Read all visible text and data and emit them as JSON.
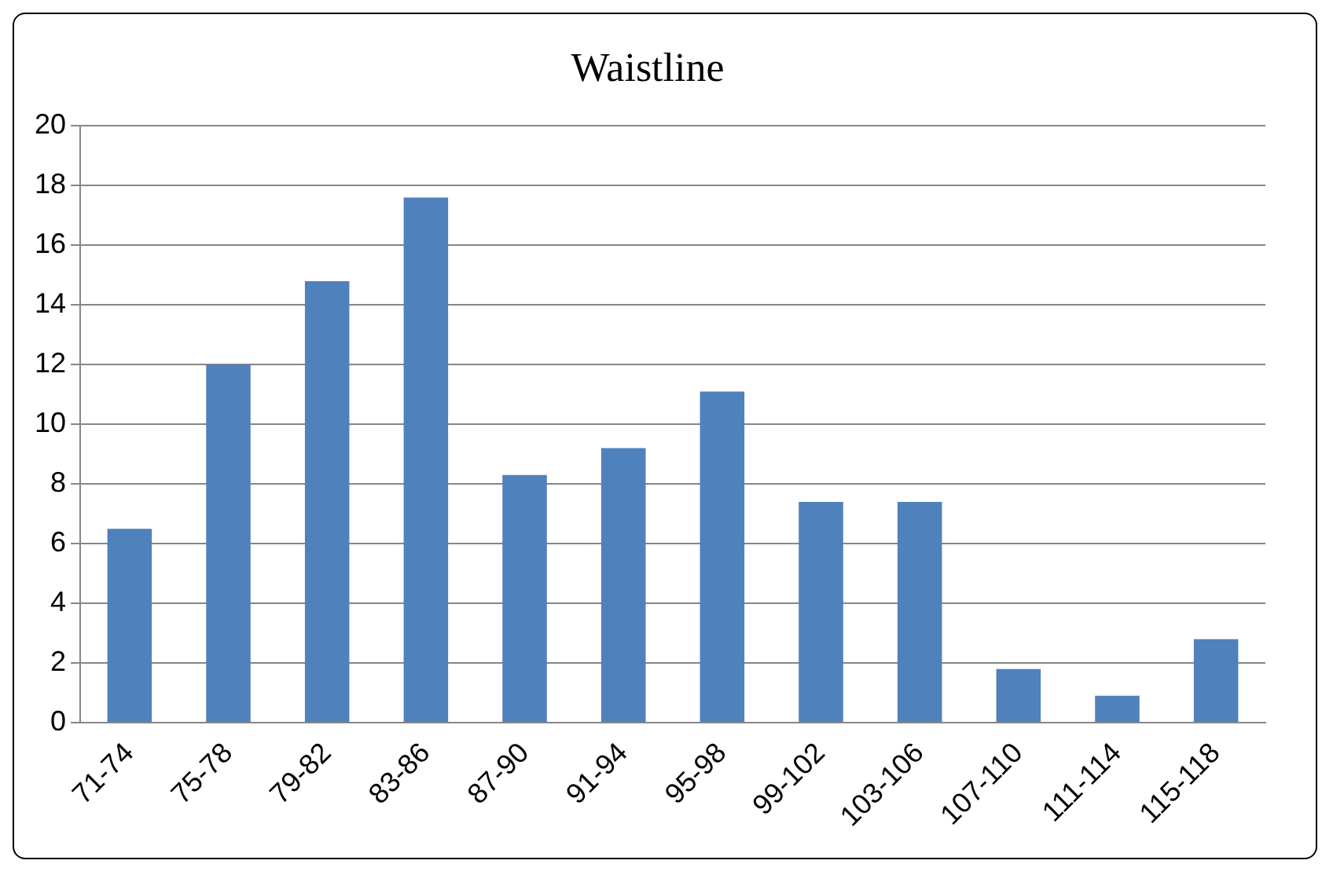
{
  "chart_data": {
    "type": "bar",
    "title": "Waistline",
    "categories": [
      "71-74",
      "75-78",
      "79-82",
      "83-86",
      "87-90",
      "91-94",
      "95-98",
      "99-102",
      "103-106",
      "107-110",
      "111-114",
      "115-118"
    ],
    "values": [
      6.5,
      12.0,
      14.8,
      17.6,
      8.3,
      9.2,
      11.1,
      7.4,
      7.4,
      1.8,
      0.9,
      2.8
    ],
    "color": "#4f81bd",
    "ylim": [
      0,
      20
    ],
    "yticks": [
      0,
      2,
      4,
      6,
      8,
      10,
      12,
      14,
      16,
      18,
      20
    ],
    "grid": "y"
  }
}
